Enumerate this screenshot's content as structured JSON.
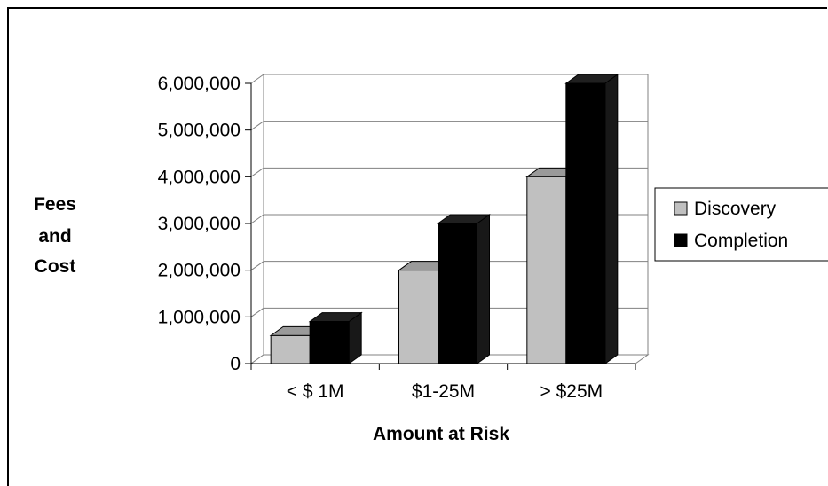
{
  "chart_data": {
    "type": "bar",
    "categories": [
      "< $ 1M",
      "$1-25M",
      "> $25M"
    ],
    "series": [
      {
        "name": "Discovery",
        "values": [
          600000,
          2000000,
          4000000
        ],
        "color": "#c0c0c0"
      },
      {
        "name": "Completion",
        "values": [
          900000,
          3000000,
          6000000
        ],
        "color": "#000000"
      }
    ],
    "ylabel_lines": [
      "Fees",
      "and",
      "Cost"
    ],
    "xlabel": "Amount at Risk",
    "ylim": [
      0,
      6000000
    ],
    "y_ticks": [
      "0",
      "1,000,000",
      "2,000,000",
      "3,000,000",
      "4,000,000",
      "5,000,000",
      "6,000,000"
    ],
    "grid": true,
    "legend_position": "right",
    "style": "3d-bar"
  }
}
